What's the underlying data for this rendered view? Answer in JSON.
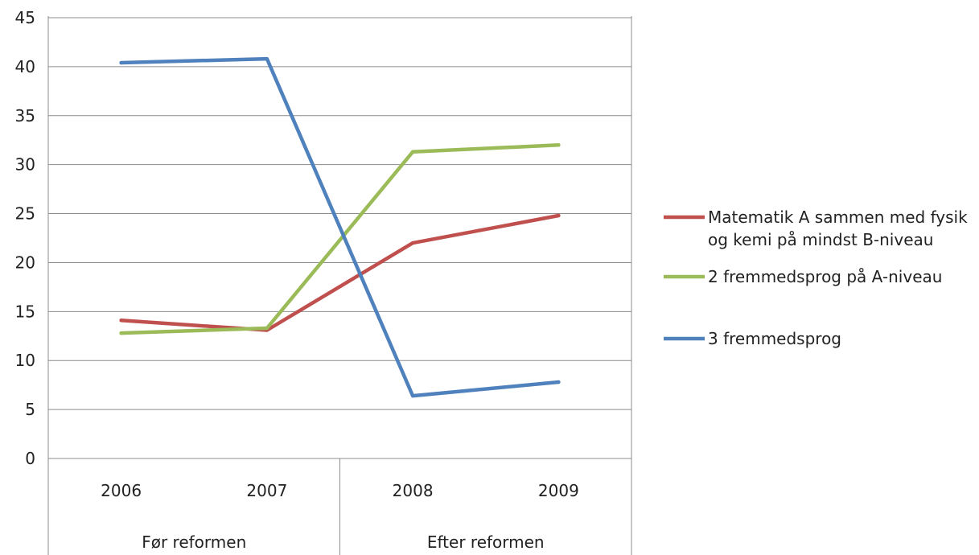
{
  "chart_data": {
    "type": "line",
    "categories": [
      "2006",
      "2007",
      "2008",
      "2009"
    ],
    "category_groups": [
      {
        "label": "Før reformen",
        "categories": [
          "2006",
          "2007"
        ]
      },
      {
        "label": "Efter reformen",
        "categories": [
          "2008",
          "2009"
        ]
      }
    ],
    "series": [
      {
        "name": "Matematik A sammen med fysik og kemi på mindst B-niveau",
        "name_lines": [
          "Matematik A sammen med fysik",
          "og kemi på mindst B-niveau"
        ],
        "color": "#c0504d",
        "values": [
          14.1,
          13.1,
          22.0,
          24.8
        ]
      },
      {
        "name": "2 fremmedsprog på A-niveau",
        "name_lines": [
          "2 fremmedsprog  på A-niveau"
        ],
        "color": "#9bbb59",
        "values": [
          12.8,
          13.3,
          31.3,
          32.0
        ]
      },
      {
        "name": "3 fremmedsprog",
        "name_lines": [
          "3 fremmedsprog"
        ],
        "color": "#4f81bd",
        "values": [
          40.4,
          40.8,
          6.4,
          7.8
        ]
      }
    ],
    "ylim": [
      0,
      45
    ],
    "yticks": [
      0,
      5,
      10,
      15,
      20,
      25,
      30,
      35,
      40,
      45
    ],
    "grid": true,
    "legend": "right",
    "title": "",
    "xlabel": "",
    "ylabel": ""
  }
}
